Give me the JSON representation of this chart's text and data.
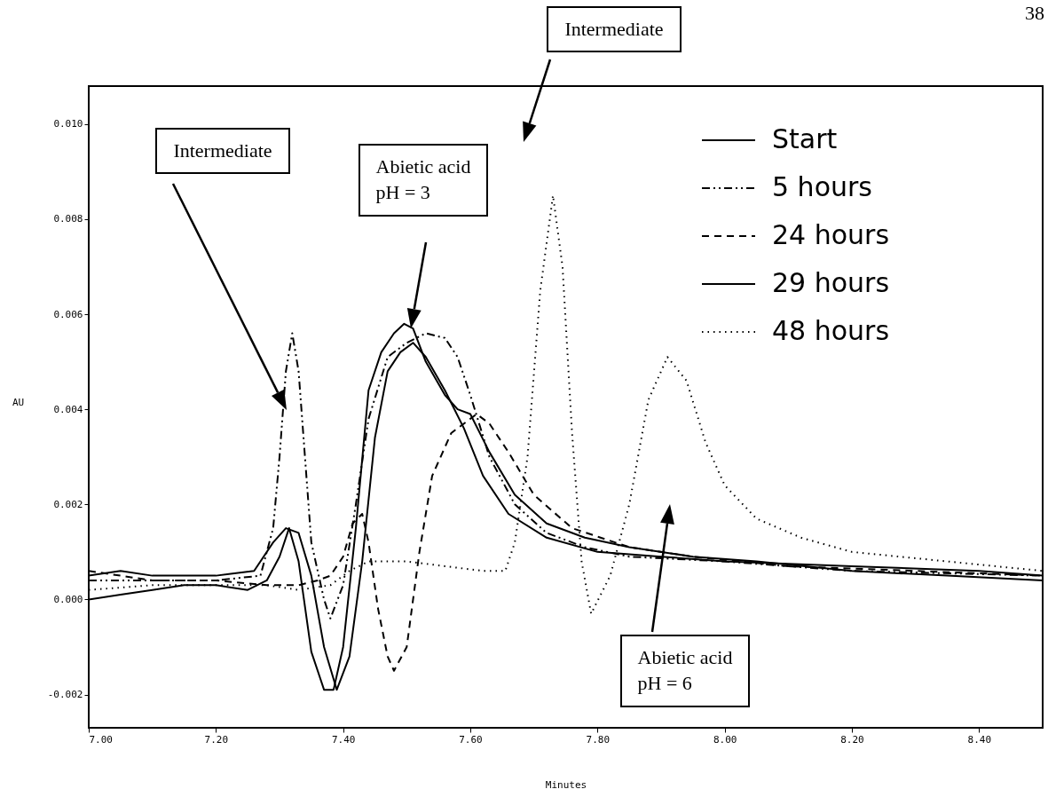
{
  "chart_data": {
    "type": "line",
    "xlabel": "Minutes",
    "ylabel": "AU",
    "xlim": [
      7.0,
      8.5
    ],
    "ylim": [
      -0.0027,
      0.0108
    ],
    "xticks": [
      {
        "value": 7.0,
        "label": "7.00"
      },
      {
        "value": 7.2,
        "label": "7.20"
      },
      {
        "value": 7.4,
        "label": "7.40"
      },
      {
        "value": 7.6,
        "label": "7.60"
      },
      {
        "value": 7.8,
        "label": "7.80"
      },
      {
        "value": 8.0,
        "label": "8.00"
      },
      {
        "value": 8.2,
        "label": "8.20"
      },
      {
        "value": 8.4,
        "label": "8.40"
      }
    ],
    "yticks": [
      {
        "value": -0.002,
        "label": "-0.002"
      },
      {
        "value": 0,
        "label": "0.000"
      },
      {
        "value": 0.002,
        "label": "0.002"
      },
      {
        "value": 0.004,
        "label": "0.004"
      },
      {
        "value": 0.006,
        "label": "0.006"
      },
      {
        "value": 0.008,
        "label": "0.008"
      },
      {
        "value": 0.01,
        "label": "0.010"
      }
    ],
    "grid": false,
    "legend": "top right",
    "series": [
      {
        "name": "Start",
        "color": "#000000",
        "line_style": "solid",
        "x": [
          7.0,
          7.05,
          7.1,
          7.15,
          7.2,
          7.25,
          7.28,
          7.3,
          7.315,
          7.33,
          7.35,
          7.37,
          7.385,
          7.4,
          7.42,
          7.44,
          7.46,
          7.48,
          7.496,
          7.51,
          7.53,
          7.56,
          7.58,
          7.6,
          7.63,
          7.67,
          7.72,
          7.78,
          7.85,
          7.95,
          8.05,
          8.2,
          8.35,
          8.5
        ],
        "values": [
          0.0,
          0.0001,
          0.0002,
          0.0003,
          0.0003,
          0.0002,
          0.0004,
          0.0009,
          0.0015,
          0.0008,
          -0.0011,
          -0.0019,
          -0.0019,
          -0.001,
          0.0015,
          0.0044,
          0.0052,
          0.0056,
          0.0058,
          0.0057,
          0.005,
          0.0043,
          0.004,
          0.0039,
          0.0031,
          0.0022,
          0.0016,
          0.0013,
          0.0011,
          0.0009,
          0.0008,
          0.0006,
          0.0005,
          0.0004
        ]
      },
      {
        "name": "5 hours",
        "color": "#000000",
        "line_style": "dashdot",
        "x": [
          7.0,
          7.1,
          7.2,
          7.27,
          7.29,
          7.3,
          7.31,
          7.32,
          7.33,
          7.34,
          7.35,
          7.37,
          7.38,
          7.4,
          7.42,
          7.44,
          7.47,
          7.5,
          7.53,
          7.56,
          7.58,
          7.6,
          7.63,
          7.67,
          7.72,
          7.78,
          7.85,
          8.0,
          8.2,
          8.5
        ],
        "values": [
          0.0004,
          0.0004,
          0.0004,
          0.0005,
          0.0015,
          0.003,
          0.0048,
          0.0056,
          0.0048,
          0.003,
          0.0012,
          0.0,
          -0.0004,
          0.0003,
          0.002,
          0.0038,
          0.0051,
          0.0054,
          0.0056,
          0.0055,
          0.0051,
          0.0043,
          0.003,
          0.002,
          0.0014,
          0.0011,
          0.0009,
          0.0008,
          0.0006,
          0.0005
        ]
      },
      {
        "name": "24 hours",
        "color": "#000000",
        "line_style": "dashed",
        "x": [
          7.0,
          7.05,
          7.1,
          7.2,
          7.28,
          7.33,
          7.36,
          7.38,
          7.4,
          7.415,
          7.43,
          7.44,
          7.455,
          7.47,
          7.48,
          7.5,
          7.52,
          7.54,
          7.57,
          7.61,
          7.63,
          7.66,
          7.7,
          7.76,
          7.85,
          7.95,
          8.1,
          8.3,
          8.5
        ],
        "values": [
          0.0006,
          0.0005,
          0.0004,
          0.0004,
          0.0003,
          0.0003,
          0.0004,
          0.0005,
          0.0009,
          0.0016,
          0.0018,
          0.0012,
          -0.0002,
          -0.0012,
          -0.0015,
          -0.001,
          0.001,
          0.0026,
          0.0035,
          0.0039,
          0.0037,
          0.0031,
          0.0022,
          0.0015,
          0.0011,
          0.0009,
          0.0007,
          0.0006,
          0.0005
        ]
      },
      {
        "name": "29 hours",
        "color": "#000000",
        "line_style": "solid",
        "x": [
          7.0,
          7.05,
          7.1,
          7.2,
          7.26,
          7.29,
          7.31,
          7.33,
          7.35,
          7.37,
          7.39,
          7.41,
          7.43,
          7.45,
          7.47,
          7.49,
          7.51,
          7.53,
          7.56,
          7.59,
          7.62,
          7.66,
          7.72,
          7.8,
          7.9,
          8.0,
          8.2,
          8.4,
          8.5
        ],
        "values": [
          0.0005,
          0.0006,
          0.0005,
          0.0005,
          0.0006,
          0.0012,
          0.0015,
          0.0014,
          0.0005,
          -0.001,
          -0.0019,
          -0.0012,
          0.0008,
          0.0034,
          0.0048,
          0.0052,
          0.0054,
          0.0051,
          0.0044,
          0.0036,
          0.0026,
          0.0018,
          0.0013,
          0.001,
          0.0009,
          0.0008,
          0.0007,
          0.0006,
          0.0005
        ]
      },
      {
        "name": "48 hours",
        "color": "#000000",
        "line_style": "dotted",
        "x": [
          7.0,
          7.1,
          7.2,
          7.28,
          7.33,
          7.38,
          7.41,
          7.44,
          7.5,
          7.56,
          7.62,
          7.655,
          7.67,
          7.69,
          7.71,
          7.73,
          7.745,
          7.76,
          7.775,
          7.79,
          7.82,
          7.85,
          7.88,
          7.91,
          7.94,
          7.97,
          8.0,
          8.05,
          8.12,
          8.2,
          8.35,
          8.5
        ],
        "values": [
          0.0002,
          0.0003,
          0.0003,
          0.0003,
          0.0002,
          0.0003,
          0.0006,
          0.0008,
          0.0008,
          0.0007,
          0.0006,
          0.0006,
          0.0012,
          0.003,
          0.0065,
          0.0085,
          0.007,
          0.0035,
          0.0008,
          -0.0003,
          0.0005,
          0.002,
          0.0042,
          0.0051,
          0.0046,
          0.0033,
          0.0024,
          0.0017,
          0.0013,
          0.001,
          0.0008,
          0.0006
        ]
      }
    ],
    "annotations": [
      "Intermediate",
      "Abietic acid\npH = 3",
      "Intermediate",
      "Abietic acid\npH = 6",
      "38"
    ]
  }
}
